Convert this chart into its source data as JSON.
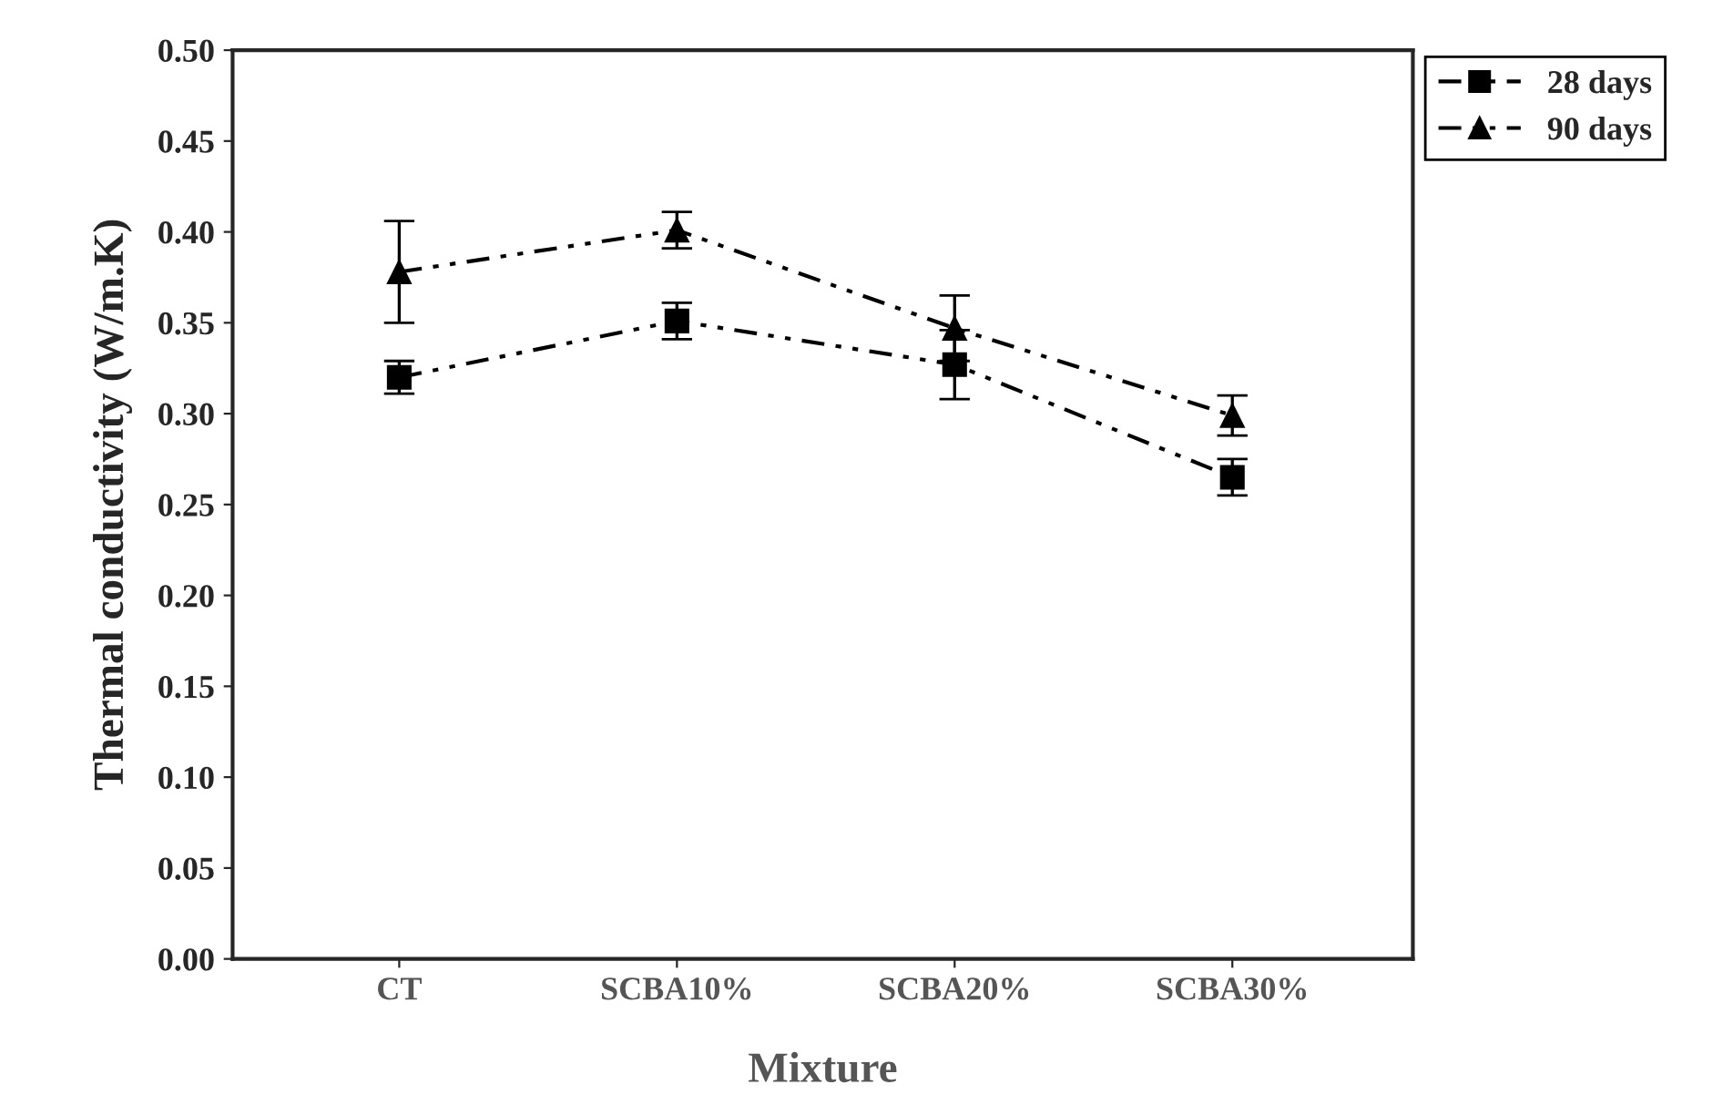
{
  "chart_data": {
    "type": "line",
    "xlabel": "Mixture",
    "ylabel": "Thermal conductivity (W/m.K)",
    "categories": [
      "CT",
      "SCBA10%",
      "SCBA20%",
      "SCBA30%"
    ],
    "series": [
      {
        "name": "28 days",
        "color": "#000000",
        "marker": "square",
        "values": [
          0.32,
          0.351,
          0.327,
          0.265
        ],
        "errors": [
          0.009,
          0.01,
          0.019,
          0.01
        ]
      },
      {
        "name": "90 days",
        "color": "#000000",
        "marker": "triangle",
        "values": [
          0.378,
          0.401,
          0.347,
          0.299
        ],
        "errors": [
          0.028,
          0.01,
          0.018,
          0.011
        ]
      }
    ],
    "ylim": [
      0,
      0.5
    ],
    "yticks": [
      {
        "value": 0,
        "label": "0.00"
      },
      {
        "value": 0.05,
        "label": "0.05"
      },
      {
        "value": 0.1,
        "label": "0.10"
      },
      {
        "value": 0.15,
        "label": "0.15"
      },
      {
        "value": 0.2,
        "label": "0.20"
      },
      {
        "value": 0.25,
        "label": "0.25"
      },
      {
        "value": 0.3,
        "label": "0.30"
      },
      {
        "value": 0.35,
        "label": "0.35"
      },
      {
        "value": 0.4,
        "label": "0.40"
      },
      {
        "value": 0.45,
        "label": "0.45"
      },
      {
        "value": 0.5,
        "label": "0.50"
      }
    ],
    "line_style": "dashed",
    "grid": false,
    "legend": "top right"
  }
}
